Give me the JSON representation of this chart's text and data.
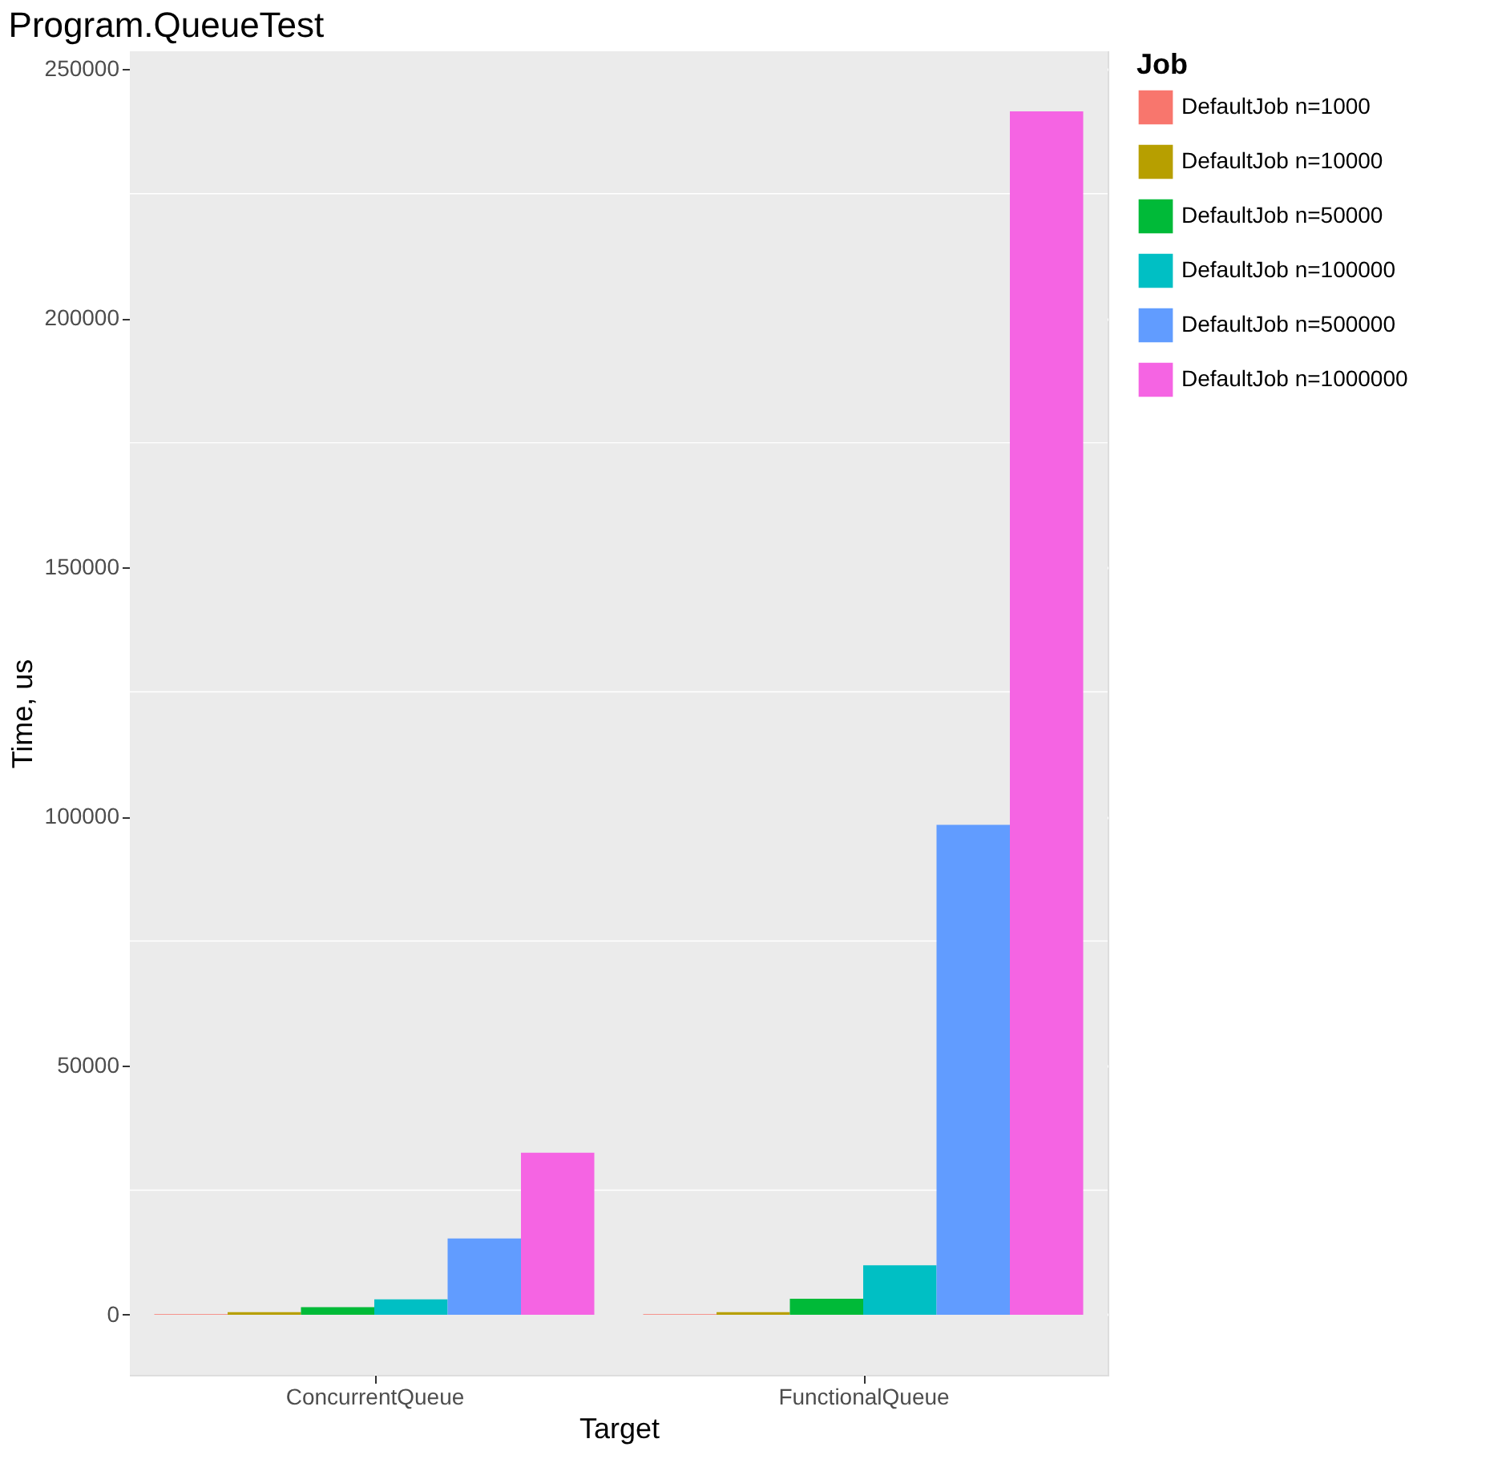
{
  "chart_data": {
    "type": "bar",
    "title": "Program.QueueTest",
    "xlabel": "Target",
    "ylabel": "Time, us",
    "legend_title": "Job",
    "categories": [
      "ConcurrentQueue",
      "FunctionalQueue"
    ],
    "series": [
      {
        "name": "DefaultJob n=1000",
        "color": "#f8766d",
        "values": [
          100,
          100
        ]
      },
      {
        "name": "DefaultJob n=10000",
        "color": "#b79f00",
        "values": [
          500,
          500
        ]
      },
      {
        "name": "DefaultJob n=50000",
        "color": "#00ba38",
        "values": [
          1500,
          3200
        ]
      },
      {
        "name": "DefaultJob n=100000",
        "color": "#00bfc4",
        "values": [
          3100,
          9900
        ]
      },
      {
        "name": "DefaultJob n=500000",
        "color": "#619cff",
        "values": [
          15300,
          98300
        ]
      },
      {
        "name": "DefaultJob n=1000000",
        "color": "#f564e3",
        "values": [
          32500,
          241500
        ]
      }
    ],
    "ylim": [
      -12075,
      253575
    ],
    "yticks": [
      0,
      50000,
      100000,
      150000,
      200000,
      250000
    ],
    "grid": true,
    "legend": "right"
  }
}
